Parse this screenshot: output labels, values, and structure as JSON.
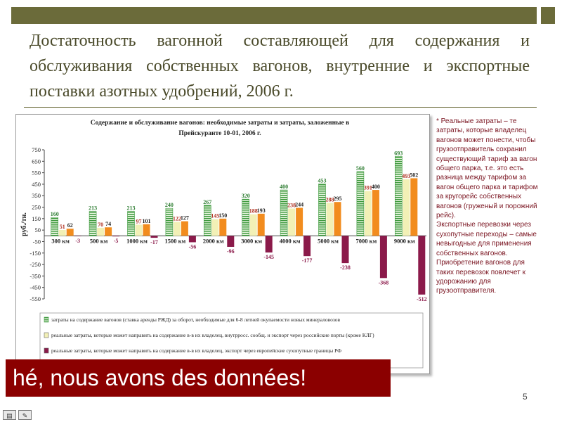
{
  "slide": {
    "title": "Достаточность вагонной составляющей для содержания и обслуживания собственных вагонов, внутренние и экспортные поставки азотных удобрений, 2006 г.",
    "page_number": "5",
    "overlay_text": "hé, nous avons des données!",
    "note": [
      "* Реальные затраты – те затраты, которые владелец вагонов может понести, чтобы грузоотправитель сохранил существующий тариф за вагон общего парка, т.е. это есть разница между тарифом за вагон общего парка и тарифом за кругорейс собственных вагонов (груженый и порожний рейс).",
      "Экспортные перевозки через сухопутные переходы – самые невыгодные для применения собственных вагонов.",
      "Приобретение вагонов для таких перевозок повлечет к удорожанию для грузоотправителя."
    ],
    "colors": {
      "accent_bar": "#6b6b3a",
      "title_text": "#4a4a2a",
      "note_text": "#7a1420",
      "overlay_bg": "#8b0000"
    }
  },
  "chart_data": {
    "type": "bar",
    "title": "Содержание и обслуживание вагонов: необходимые затраты и затраты, заложенные в Прейскуранте 10-01, 2006 г.",
    "ylabel": "руб./тн.",
    "xlabel": "",
    "ylim": [
      -550,
      750
    ],
    "yticks": [
      750,
      650,
      550,
      450,
      350,
      250,
      150,
      50,
      -50,
      -150,
      -250,
      -350,
      -450,
      -550
    ],
    "categories": [
      "300 км",
      "500 км",
      "1000 км",
      "1500 км",
      "2000 км",
      "3000 км",
      "4000 км",
      "5000 км",
      "7000 км",
      "9000 км"
    ],
    "series": [
      {
        "name": "затраты на содержание вагонов (ставка аренды РЖД) за оборот, необходимые для 6-8 летней окупаемости новых минераловозов",
        "color": "#3f9a3f",
        "fill": "stripes",
        "values": [
          160,
          213,
          213,
          240,
          267,
          320,
          400,
          453,
          560,
          693
        ],
        "labels": [
          "160",
          "213",
          "213",
          "240",
          "267",
          "320",
          "400",
          "453",
          "560",
          "693"
        ]
      },
      {
        "name": "реальные затраты, которые может направить на содержание в-в их владелец, внутрросс. сообщ. и экспорт через российские порты (кроме КЛГ)",
        "color": "#f2f0b6",
        "fill": "solid",
        "values": [
          51,
          70,
          97,
          122,
          145,
          188,
          238,
          288,
          391,
          493
        ],
        "labels": [
          "51",
          "70",
          "97",
          "122",
          "145",
          "188",
          "238",
          "288",
          "391",
          "493"
        ]
      },
      {
        "name": "",
        "color": "#f28c1e",
        "fill": "solid",
        "values": [
          62,
          74,
          101,
          127,
          150,
          193,
          244,
          295,
          400,
          502
        ],
        "labels": [
          "62",
          "74",
          "101",
          "127",
          "150",
          "193",
          "244",
          "295",
          "400",
          "502"
        ]
      },
      {
        "name": "реальные затраты, которые может направить на содержание в-в их владелец, экспорт через европейские сухопутные границы РФ",
        "color": "#8b1a4a",
        "fill": "solid",
        "values": [
          -3,
          -5,
          -17,
          -56,
          -96,
          -145,
          -177,
          -238,
          -368,
          -512
        ],
        "labels": [
          "-3",
          "-5",
          "-17",
          "-56",
          "-96",
          "-145",
          "-177",
          "-238",
          "-368",
          "-512"
        ]
      }
    ],
    "legend_position": "bottom",
    "grid": false
  }
}
